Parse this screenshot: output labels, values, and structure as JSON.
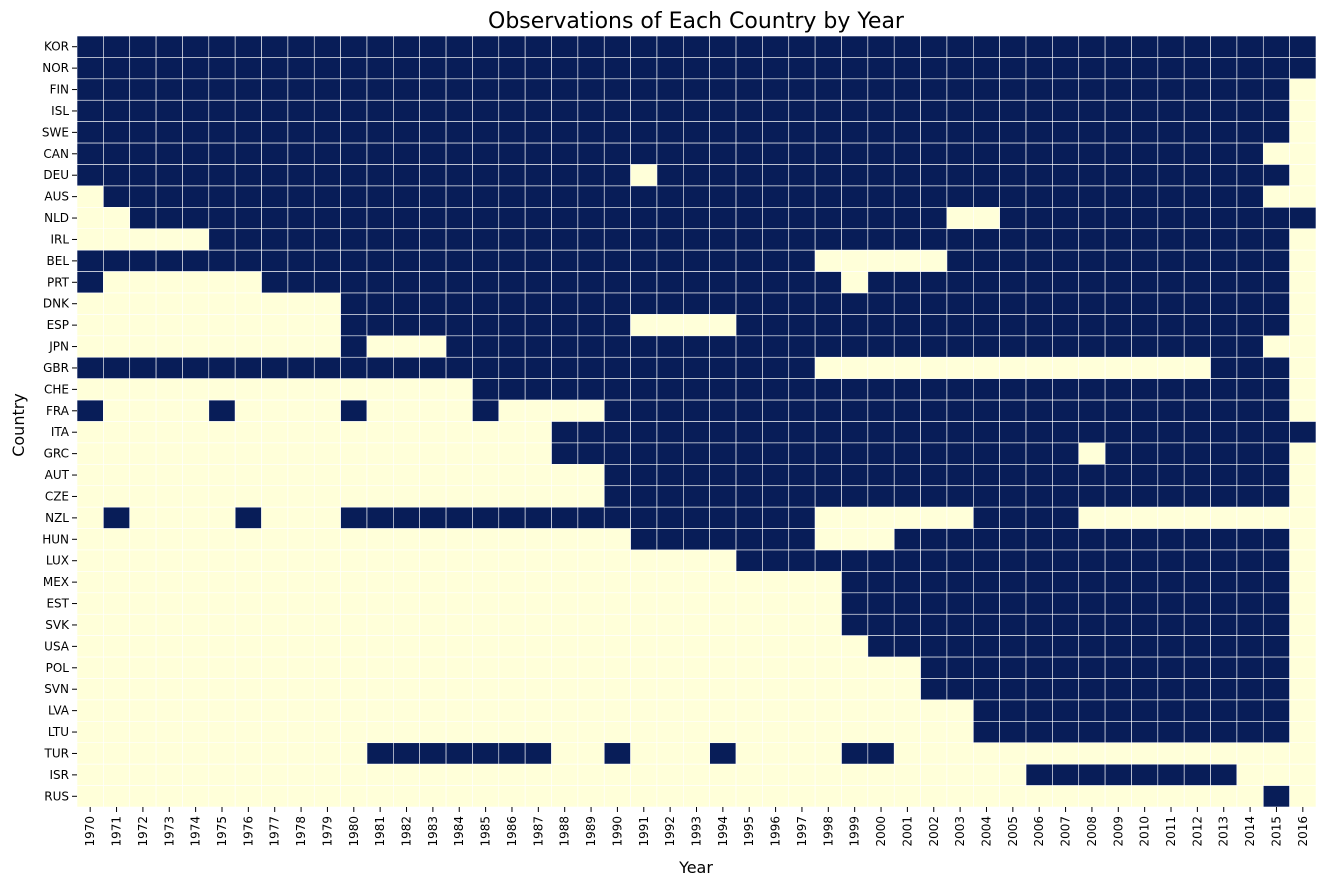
{
  "chart_data": {
    "type": "heatmap",
    "title": "Observations of Each Country by Year",
    "xlabel": "Year",
    "ylabel": "Country",
    "colors": {
      "observed": "#081d58",
      "missing": "#ffffd9",
      "gridline": "#ffffff"
    },
    "years": [
      "1970",
      "1971",
      "1972",
      "1973",
      "1974",
      "1975",
      "1976",
      "1977",
      "1978",
      "1979",
      "1980",
      "1981",
      "1982",
      "1983",
      "1984",
      "1985",
      "1986",
      "1987",
      "1988",
      "1989",
      "1990",
      "1991",
      "1992",
      "1993",
      "1994",
      "1995",
      "1996",
      "1997",
      "1998",
      "1999",
      "2000",
      "2001",
      "2002",
      "2003",
      "2004",
      "2005",
      "2006",
      "2007",
      "2008",
      "2009",
      "2010",
      "2011",
      "2012",
      "2013",
      "2014",
      "2015",
      "2016"
    ],
    "countries": [
      "KOR",
      "NOR",
      "FIN",
      "ISL",
      "SWE",
      "CAN",
      "DEU",
      "AUS",
      "NLD",
      "IRL",
      "BEL",
      "PRT",
      "DNK",
      "ESP",
      "JPN",
      "GBR",
      "CHE",
      "FRA",
      "ITA",
      "GRC",
      "AUT",
      "CZE",
      "NZL",
      "HUN",
      "LUX",
      "MEX",
      "EST",
      "SVK",
      "USA",
      "POL",
      "SVN",
      "LVA",
      "LTU",
      "TUR",
      "ISR",
      "RUS"
    ],
    "observed": {
      "KOR": [
        [
          1970,
          2016
        ]
      ],
      "NOR": [
        [
          1970,
          2016
        ]
      ],
      "FIN": [
        [
          1970,
          2015
        ]
      ],
      "ISL": [
        [
          1970,
          2015
        ]
      ],
      "SWE": [
        [
          1970,
          2015
        ]
      ],
      "CAN": [
        [
          1970,
          2014
        ]
      ],
      "DEU": [
        [
          1970,
          1990
        ],
        [
          1992,
          2015
        ]
      ],
      "AUS": [
        [
          1971,
          2014
        ]
      ],
      "NLD": [
        [
          1972,
          2002
        ],
        [
          2005,
          2016
        ]
      ],
      "IRL": [
        [
          1975,
          2015
        ]
      ],
      "BEL": [
        [
          1970,
          1997
        ],
        [
          2003,
          2015
        ]
      ],
      "PRT": [
        [
          1970,
          1970
        ],
        [
          1977,
          1998
        ],
        [
          2000,
          2015
        ]
      ],
      "DNK": [
        [
          1980,
          2015
        ]
      ],
      "ESP": [
        [
          1980,
          1990
        ],
        [
          1995,
          2015
        ]
      ],
      "JPN": [
        [
          1980,
          1980
        ],
        [
          1984,
          2014
        ]
      ],
      "GBR": [
        [
          1970,
          1997
        ],
        [
          2013,
          2015
        ]
      ],
      "CHE": [
        [
          1985,
          2015
        ]
      ],
      "FRA": [
        [
          1970,
          1970
        ],
        [
          1975,
          1975
        ],
        [
          1980,
          1980
        ],
        [
          1985,
          1985
        ],
        [
          1990,
          2015
        ]
      ],
      "ITA": [
        [
          1988,
          2016
        ]
      ],
      "GRC": [
        [
          1988,
          2007
        ],
        [
          2009,
          2015
        ]
      ],
      "AUT": [
        [
          1990,
          2015
        ]
      ],
      "CZE": [
        [
          1990,
          2015
        ]
      ],
      "NZL": [
        [
          1971,
          1971
        ],
        [
          1976,
          1976
        ],
        [
          1980,
          1997
        ],
        [
          2004,
          2007
        ]
      ],
      "HUN": [
        [
          1991,
          1997
        ],
        [
          2001,
          2015
        ]
      ],
      "LUX": [
        [
          1995,
          2015
        ]
      ],
      "MEX": [
        [
          1999,
          2015
        ]
      ],
      "EST": [
        [
          1999,
          2015
        ]
      ],
      "SVK": [
        [
          1999,
          2015
        ]
      ],
      "USA": [
        [
          2000,
          2015
        ]
      ],
      "POL": [
        [
          2002,
          2015
        ]
      ],
      "SVN": [
        [
          2002,
          2015
        ]
      ],
      "LVA": [
        [
          2004,
          2015
        ]
      ],
      "LTU": [
        [
          2004,
          2015
        ]
      ],
      "TUR": [
        [
          1981,
          1987
        ],
        [
          1990,
          1990
        ],
        [
          1994,
          1994
        ],
        [
          1999,
          2000
        ]
      ],
      "ISR": [
        [
          2006,
          2013
        ]
      ],
      "RUS": [
        [
          2015,
          2015
        ]
      ]
    }
  }
}
